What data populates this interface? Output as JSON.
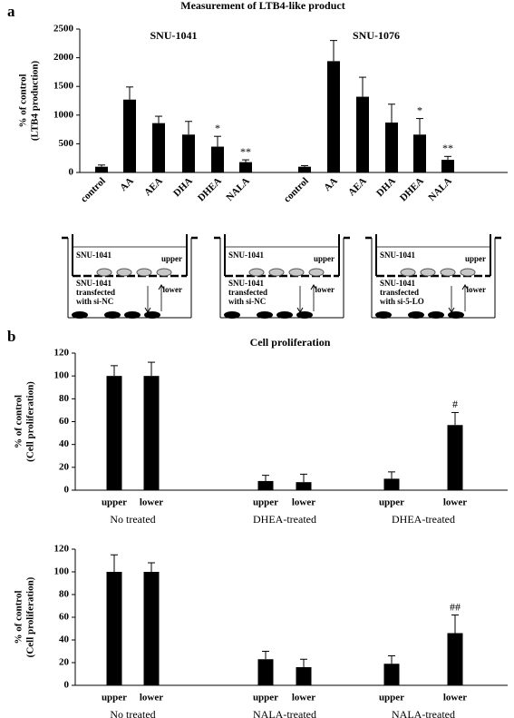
{
  "panel_labels": [
    "a",
    "b"
  ],
  "chart_data": [
    {
      "type": "bar",
      "title": "Measurement of LTB4-like product",
      "y_label": [
        "% of control",
        "(LTB4 production)"
      ],
      "ylim": [
        0,
        2500
      ],
      "yticks": [
        0,
        500,
        1000,
        1500,
        2000,
        2500
      ],
      "color": "#000000",
      "groups": [
        {
          "name": "SNU-1041",
          "categories": [
            "control",
            "AA",
            "AEA",
            "DHA",
            "DHEA",
            "NALA"
          ],
          "values": [
            100,
            1270,
            860,
            660,
            450,
            180
          ],
          "errors": [
            30,
            220,
            120,
            230,
            180,
            40
          ],
          "annotations": [
            null,
            null,
            null,
            null,
            "*",
            "**"
          ]
        },
        {
          "name": "SNU-1076",
          "categories": [
            "control",
            "AA",
            "AEA",
            "DHA",
            "DHEA",
            "NALA"
          ],
          "values": [
            100,
            1940,
            1320,
            870,
            660,
            220
          ],
          "errors": [
            20,
            360,
            340,
            320,
            280,
            60
          ],
          "annotations": [
            null,
            null,
            null,
            null,
            "*",
            "**"
          ]
        }
      ]
    },
    {
      "type": "bar",
      "title": "Cell proliferation",
      "y_label": [
        "% of control",
        "(Cell proliferation)"
      ],
      "ylim": [
        0,
        120
      ],
      "yticks": [
        0,
        20,
        40,
        60,
        80,
        100,
        120
      ],
      "color": "#000000",
      "groups": [
        {
          "name": "No treated",
          "categories": [
            "upper",
            "lower"
          ],
          "values": [
            100,
            100
          ],
          "errors": [
            9,
            12
          ],
          "annotations": [
            null,
            null
          ]
        },
        {
          "name": "DHEA-treated",
          "categories": [
            "upper",
            "lower"
          ],
          "values": [
            8,
            7
          ],
          "errors": [
            5,
            7
          ],
          "annotations": [
            null,
            null
          ]
        },
        {
          "name": "DHEA-treated",
          "categories": [
            "upper",
            "lower"
          ],
          "values": [
            10,
            57
          ],
          "errors": [
            6,
            11
          ],
          "annotations": [
            null,
            "#"
          ]
        }
      ]
    },
    {
      "type": "bar",
      "y_label": [
        "% of control",
        "(Cell proliferation)"
      ],
      "ylim": [
        0,
        120
      ],
      "yticks": [
        0,
        20,
        40,
        60,
        80,
        100,
        120
      ],
      "color": "#000000",
      "groups": [
        {
          "name": "No treated",
          "categories": [
            "upper",
            "lower"
          ],
          "values": [
            100,
            100
          ],
          "errors": [
            15,
            8
          ],
          "annotations": [
            null,
            null
          ]
        },
        {
          "name": "NALA-treated",
          "categories": [
            "upper",
            "lower"
          ],
          "values": [
            23,
            16
          ],
          "errors": [
            7,
            7
          ],
          "annotations": [
            null,
            null
          ]
        },
        {
          "name": "NALA-treated",
          "categories": [
            "upper",
            "lower"
          ],
          "values": [
            19,
            46
          ],
          "errors": [
            7,
            16
          ],
          "annotations": [
            null,
            "##"
          ]
        }
      ]
    }
  ],
  "diagrams": [
    {
      "top_cell": "SNU-1041",
      "upper": "upper",
      "bottom_cell": [
        "SNU-1041",
        "transfected",
        "with si-NC"
      ],
      "lower": "lower"
    },
    {
      "top_cell": "SNU-1041",
      "upper": "upper",
      "bottom_cell": [
        "SNU-1041",
        "transfected",
        "with si-NC"
      ],
      "lower": "lower"
    },
    {
      "top_cell": "SNU-1041",
      "upper": "upper",
      "bottom_cell": [
        "SNU-1041",
        "transfected",
        "with si-5-LO"
      ],
      "lower": "lower"
    }
  ]
}
